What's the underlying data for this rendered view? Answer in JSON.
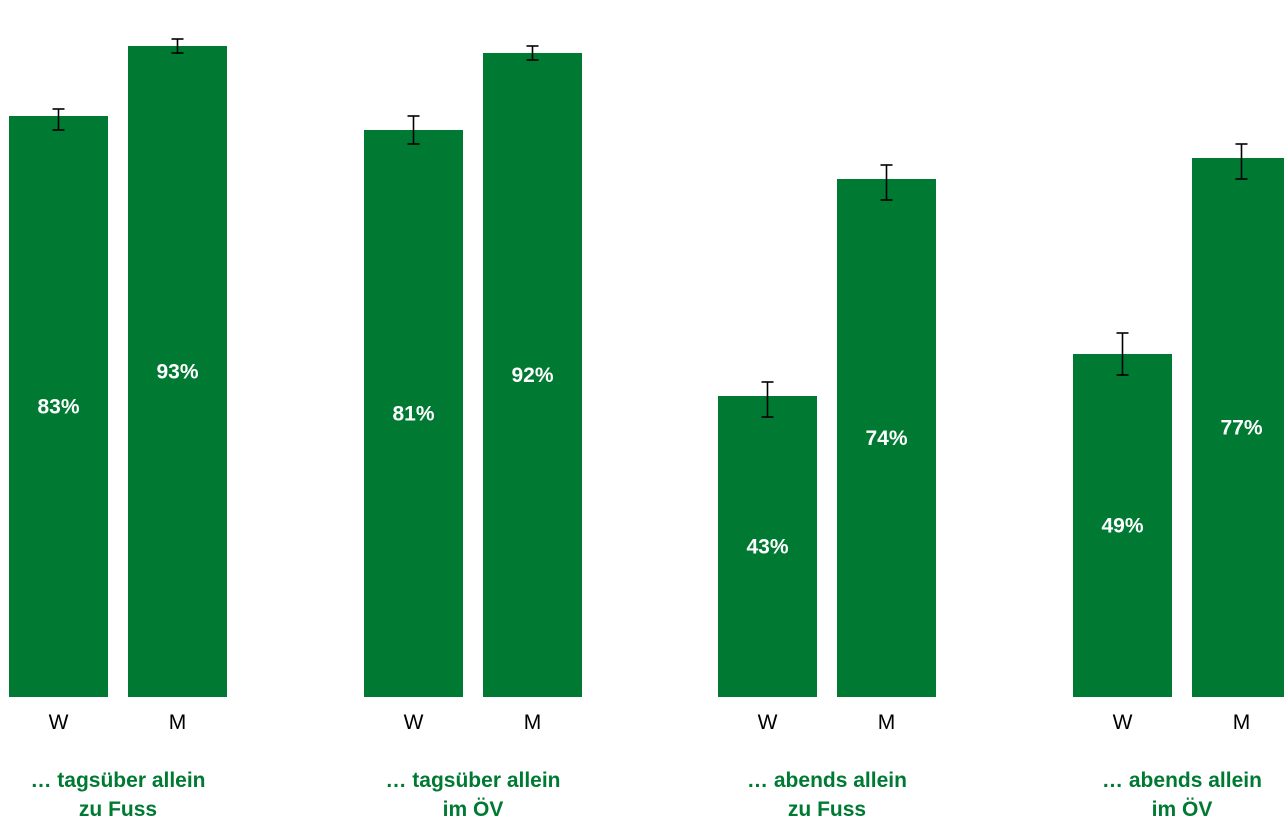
{
  "chart_data": {
    "type": "bar",
    "groups": [
      {
        "label": [
          "… tagsüber allein",
          "zu Fuss"
        ],
        "bars": [
          {
            "category": "W",
            "value": 83,
            "label": "83%",
            "err_low": 81,
            "err_high": 84
          },
          {
            "category": "M",
            "value": 93,
            "label": "93%",
            "err_low": 92,
            "err_high": 94
          }
        ]
      },
      {
        "label": [
          "… tagsüber allein",
          "im ÖV"
        ],
        "bars": [
          {
            "category": "W",
            "value": 81,
            "label": "81%",
            "err_low": 79,
            "err_high": 83
          },
          {
            "category": "M",
            "value": 92,
            "label": "92%",
            "err_low": 91,
            "err_high": 93
          }
        ]
      },
      {
        "label": [
          "… abends allein",
          "zu Fuss"
        ],
        "bars": [
          {
            "category": "W",
            "value": 43,
            "label": "43%",
            "err_low": 40,
            "err_high": 45
          },
          {
            "category": "M",
            "value": 74,
            "label": "74%",
            "err_low": 71,
            "err_high": 76
          }
        ]
      },
      {
        "label": [
          "… abends allein",
          "im ÖV"
        ],
        "bars": [
          {
            "category": "W",
            "value": 49,
            "label": "49%",
            "err_low": 46,
            "err_high": 52
          },
          {
            "category": "M",
            "value": 77,
            "label": "77%",
            "err_low": 74,
            "err_high": 79
          }
        ]
      }
    ],
    "ylim": [
      0,
      100
    ],
    "grid": false,
    "colors": {
      "bar": "#007a33",
      "value_label": "#ffffff",
      "category_label": "#007a33",
      "error_bar": "#000000",
      "tick_label": "#000000"
    }
  }
}
